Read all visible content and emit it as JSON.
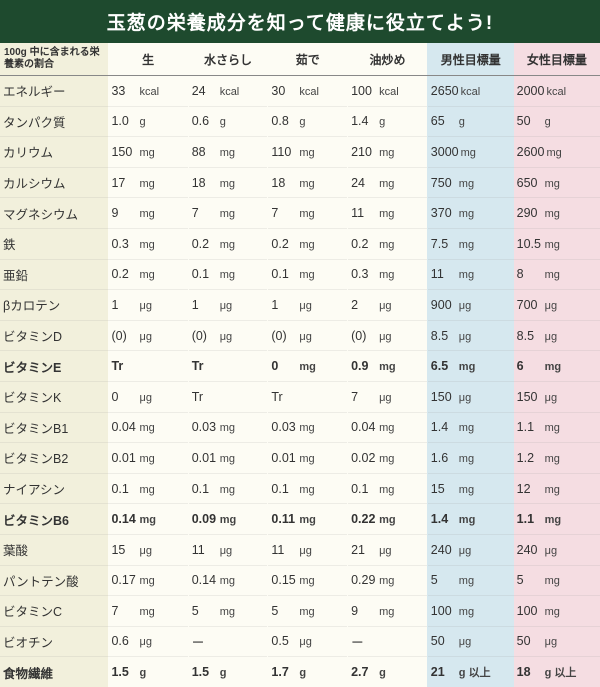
{
  "title": "玉葱の栄養成分を知って健康に役立てよう!",
  "columns": {
    "corner": "100g 中に含まれる栄養素の割合",
    "raw": "生",
    "water": "水さらし",
    "boil": "茹で",
    "fry": "油炒め",
    "male": "男性目標量",
    "female": "女性目標量"
  },
  "rows": [
    {
      "label": "エネルギー",
      "raw": "33",
      "water": "24",
      "boil": "30",
      "fry": "100",
      "unit": "kcal",
      "male": "2650",
      "male_unit": "kcal",
      "female": "2000",
      "female_unit": "kcal",
      "bold": false
    },
    {
      "label": "タンパク質",
      "raw": "1.0",
      "water": "0.6",
      "boil": "0.8",
      "fry": "1.4",
      "unit": "g",
      "male": "65",
      "male_unit": "g",
      "female": "50",
      "female_unit": "g",
      "bold": false
    },
    {
      "label": "カリウム",
      "raw": "150",
      "water": "88",
      "boil": "110",
      "fry": "210",
      "unit": "mg",
      "male": "3000",
      "male_unit": "mg",
      "female": "2600",
      "female_unit": "mg",
      "bold": false
    },
    {
      "label": "カルシウム",
      "raw": "17",
      "water": "18",
      "boil": "18",
      "fry": "24",
      "unit": "mg",
      "male": "750",
      "male_unit": "mg",
      "female": "650",
      "female_unit": "mg",
      "bold": false
    },
    {
      "label": "マグネシウム",
      "raw": "9",
      "water": "7",
      "boil": "7",
      "fry": "11",
      "unit": "mg",
      "male": "370",
      "male_unit": "mg",
      "female": "290",
      "female_unit": "mg",
      "bold": false
    },
    {
      "label": "鉄",
      "raw": "0.3",
      "water": "0.2",
      "boil": "0.2",
      "fry": "0.2",
      "unit": "mg",
      "male": "7.5",
      "male_unit": "mg",
      "female": "10.5",
      "female_unit": "mg",
      "bold": false
    },
    {
      "label": "亜鉛",
      "raw": "0.2",
      "water": "0.1",
      "boil": "0.1",
      "fry": "0.3",
      "unit": "mg",
      "male": "11",
      "male_unit": "mg",
      "female": "8",
      "female_unit": "mg",
      "bold": false
    },
    {
      "label": "βカロテン",
      "raw": "1",
      "water": "1",
      "boil": "1",
      "fry": "2",
      "unit": "μg",
      "male": "900",
      "male_unit": "μg",
      "female": "700",
      "female_unit": "μg",
      "bold": false
    },
    {
      "label": "ビタミンD",
      "raw": "(0)",
      "water": "(0)",
      "boil": "(0)",
      "fry": "(0)",
      "unit": "μg",
      "male": "8.5",
      "male_unit": "μg",
      "female": "8.5",
      "female_unit": "μg",
      "bold": false
    },
    {
      "label": "ビタミンE",
      "raw": "Tr",
      "water": "Tr",
      "boil": "0",
      "fry": "0.9",
      "unit": "mg",
      "male": "6.5",
      "male_unit": "mg",
      "female": "6",
      "female_unit": "mg",
      "bold": true,
      "raw_no_unit": true,
      "water_no_unit": true
    },
    {
      "label": "ビタミンK",
      "raw": "0",
      "water": "Tr",
      "boil": "Tr",
      "fry": "7",
      "unit": "μg",
      "male": "150",
      "male_unit": "μg",
      "female": "150",
      "female_unit": "μg",
      "bold": false,
      "water_no_unit": true,
      "boil_no_unit": true
    },
    {
      "label": "ビタミンB1",
      "raw": "0.04",
      "water": "0.03",
      "boil": "0.03",
      "fry": "0.04",
      "unit": "mg",
      "male": "1.4",
      "male_unit": "mg",
      "female": "1.1",
      "female_unit": "mg",
      "bold": false
    },
    {
      "label": "ビタミンB2",
      "raw": "0.01",
      "water": "0.01",
      "boil": "0.01",
      "fry": "0.02",
      "unit": "mg",
      "male": "1.6",
      "male_unit": "mg",
      "female": "1.2",
      "female_unit": "mg",
      "bold": false
    },
    {
      "label": "ナイアシン",
      "raw": "0.1",
      "water": "0.1",
      "boil": "0.1",
      "fry": "0.1",
      "unit": "mg",
      "male": "15",
      "male_unit": "mg",
      "female": "12",
      "female_unit": "mg",
      "bold": false
    },
    {
      "label": "ビタミンB6",
      "raw": "0.14",
      "water": "0.09",
      "boil": "0.11",
      "fry": "0.22",
      "unit": "mg",
      "male": "1.4",
      "male_unit": "mg",
      "female": "1.1",
      "female_unit": "mg",
      "bold": true
    },
    {
      "label": "葉酸",
      "raw": "15",
      "water": "11",
      "boil": "11",
      "fry": "21",
      "unit": "μg",
      "male": "240",
      "male_unit": "μg",
      "female": "240",
      "female_unit": "μg",
      "bold": false
    },
    {
      "label": "パントテン酸",
      "raw": "0.17",
      "water": "0.14",
      "boil": "0.15",
      "fry": "0.29",
      "unit": "mg",
      "male": "5",
      "male_unit": "mg",
      "female": "5",
      "female_unit": "mg",
      "bold": false
    },
    {
      "label": "ビタミンC",
      "raw": "7",
      "water": "5",
      "boil": "5",
      "fry": "9",
      "unit": "mg",
      "male": "100",
      "male_unit": "mg",
      "female": "100",
      "female_unit": "mg",
      "bold": false
    },
    {
      "label": "ビオチン",
      "raw": "0.6",
      "water": "ー",
      "boil": "0.5",
      "fry": "ー",
      "unit": "μg",
      "male": "50",
      "male_unit": "μg",
      "female": "50",
      "female_unit": "μg",
      "bold": false,
      "water_no_unit": true,
      "fry_no_unit": true
    },
    {
      "label": "食物繊維",
      "raw": "1.5",
      "water": "1.5",
      "boil": "1.7",
      "fry": "2.7",
      "unit": "g",
      "male": "21",
      "male_unit": "g 以上",
      "female": "18",
      "female_unit": "g 以上",
      "bold": true
    }
  ],
  "colors": {
    "header_bg": "#1e4a2e",
    "label_bg": "#f2f0dc",
    "data_bg": "#fdfcf4",
    "male_bg": "#d6e8ef",
    "female_bg": "#f5dde2"
  }
}
